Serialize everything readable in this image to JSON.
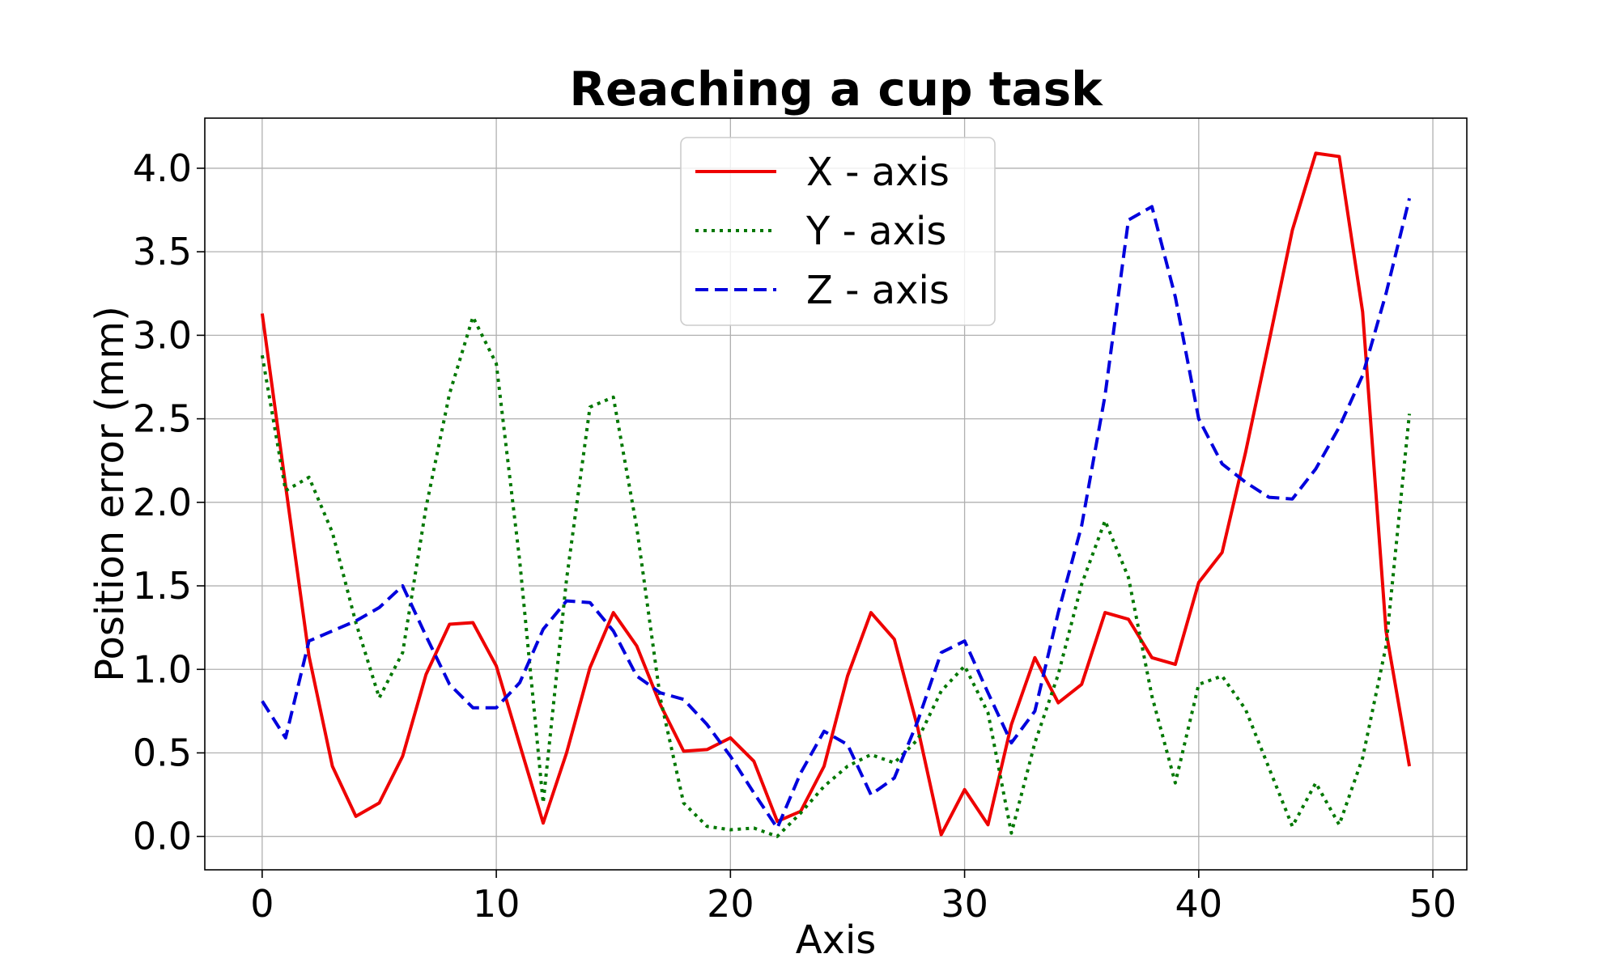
{
  "chart_data": {
    "type": "line",
    "title": "Reaching a cup task",
    "xlabel": "Axis",
    "ylabel": "Position error (mm)",
    "xlim": [
      -2.45,
      51.45
    ],
    "ylim": [
      -0.2,
      4.3
    ],
    "xticks": [
      0,
      10,
      20,
      30,
      40,
      50
    ],
    "yticks": [
      0.0,
      0.5,
      1.0,
      1.5,
      2.0,
      2.5,
      3.0,
      3.5,
      4.0
    ],
    "xtick_labels": [
      "0",
      "10",
      "20",
      "30",
      "40",
      "50"
    ],
    "ytick_labels": [
      "0.0",
      "0.5",
      "1.0",
      "1.5",
      "2.0",
      "2.5",
      "3.0",
      "3.5",
      "4.0"
    ],
    "grid": true,
    "legend_position": "top-center",
    "x": [
      0,
      1,
      2,
      3,
      4,
      5,
      6,
      7,
      8,
      9,
      10,
      11,
      12,
      13,
      14,
      15,
      16,
      17,
      18,
      19,
      20,
      21,
      22,
      23,
      24,
      25,
      26,
      27,
      28,
      29,
      30,
      31,
      32,
      33,
      34,
      35,
      36,
      37,
      38,
      39,
      40,
      41,
      42,
      43,
      44,
      45,
      46,
      47,
      48,
      49
    ],
    "series": [
      {
        "name": "X - axis",
        "color": "#ee0000",
        "style": "solid",
        "values": [
          3.13,
          2.1,
          1.08,
          0.42,
          0.12,
          0.2,
          0.48,
          0.97,
          1.27,
          1.28,
          1.02,
          0.55,
          0.08,
          0.5,
          1.01,
          1.34,
          1.14,
          0.79,
          0.51,
          0.52,
          0.59,
          0.45,
          0.09,
          0.15,
          0.42,
          0.96,
          1.34,
          1.18,
          0.65,
          0.01,
          0.28,
          0.07,
          0.67,
          1.07,
          0.8,
          0.91,
          1.34,
          1.3,
          1.07,
          1.03,
          1.52,
          1.7,
          2.3,
          2.96,
          3.63,
          4.09,
          4.07,
          3.14,
          1.23,
          0.42
        ]
      },
      {
        "name": "Y - axis",
        "color": "#007700",
        "style": "dotted",
        "values": [
          2.88,
          2.07,
          2.15,
          1.82,
          1.28,
          0.83,
          1.1,
          1.97,
          2.65,
          3.11,
          2.83,
          1.65,
          0.2,
          1.54,
          2.57,
          2.63,
          1.85,
          0.83,
          0.2,
          0.06,
          0.04,
          0.05,
          0.0,
          0.14,
          0.3,
          0.42,
          0.49,
          0.44,
          0.58,
          0.87,
          1.02,
          0.74,
          0.02,
          0.56,
          0.97,
          1.51,
          1.89,
          1.55,
          0.84,
          0.32,
          0.91,
          0.96,
          0.76,
          0.41,
          0.06,
          0.32,
          0.07,
          0.47,
          1.14,
          2.53
        ]
      },
      {
        "name": "Z - axis",
        "color": "#0000dd",
        "style": "dashed",
        "values": [
          0.81,
          0.59,
          1.17,
          1.23,
          1.29,
          1.37,
          1.5,
          1.2,
          0.91,
          0.77,
          0.77,
          0.92,
          1.24,
          1.41,
          1.4,
          1.23,
          0.96,
          0.86,
          0.82,
          0.67,
          0.48,
          0.26,
          0.05,
          0.38,
          0.63,
          0.55,
          0.25,
          0.35,
          0.69,
          1.1,
          1.17,
          0.86,
          0.56,
          0.75,
          1.34,
          1.86,
          2.64,
          3.69,
          3.77,
          3.23,
          2.5,
          2.23,
          2.12,
          2.03,
          2.02,
          2.2,
          2.45,
          2.76,
          3.25,
          3.82
        ]
      }
    ]
  }
}
